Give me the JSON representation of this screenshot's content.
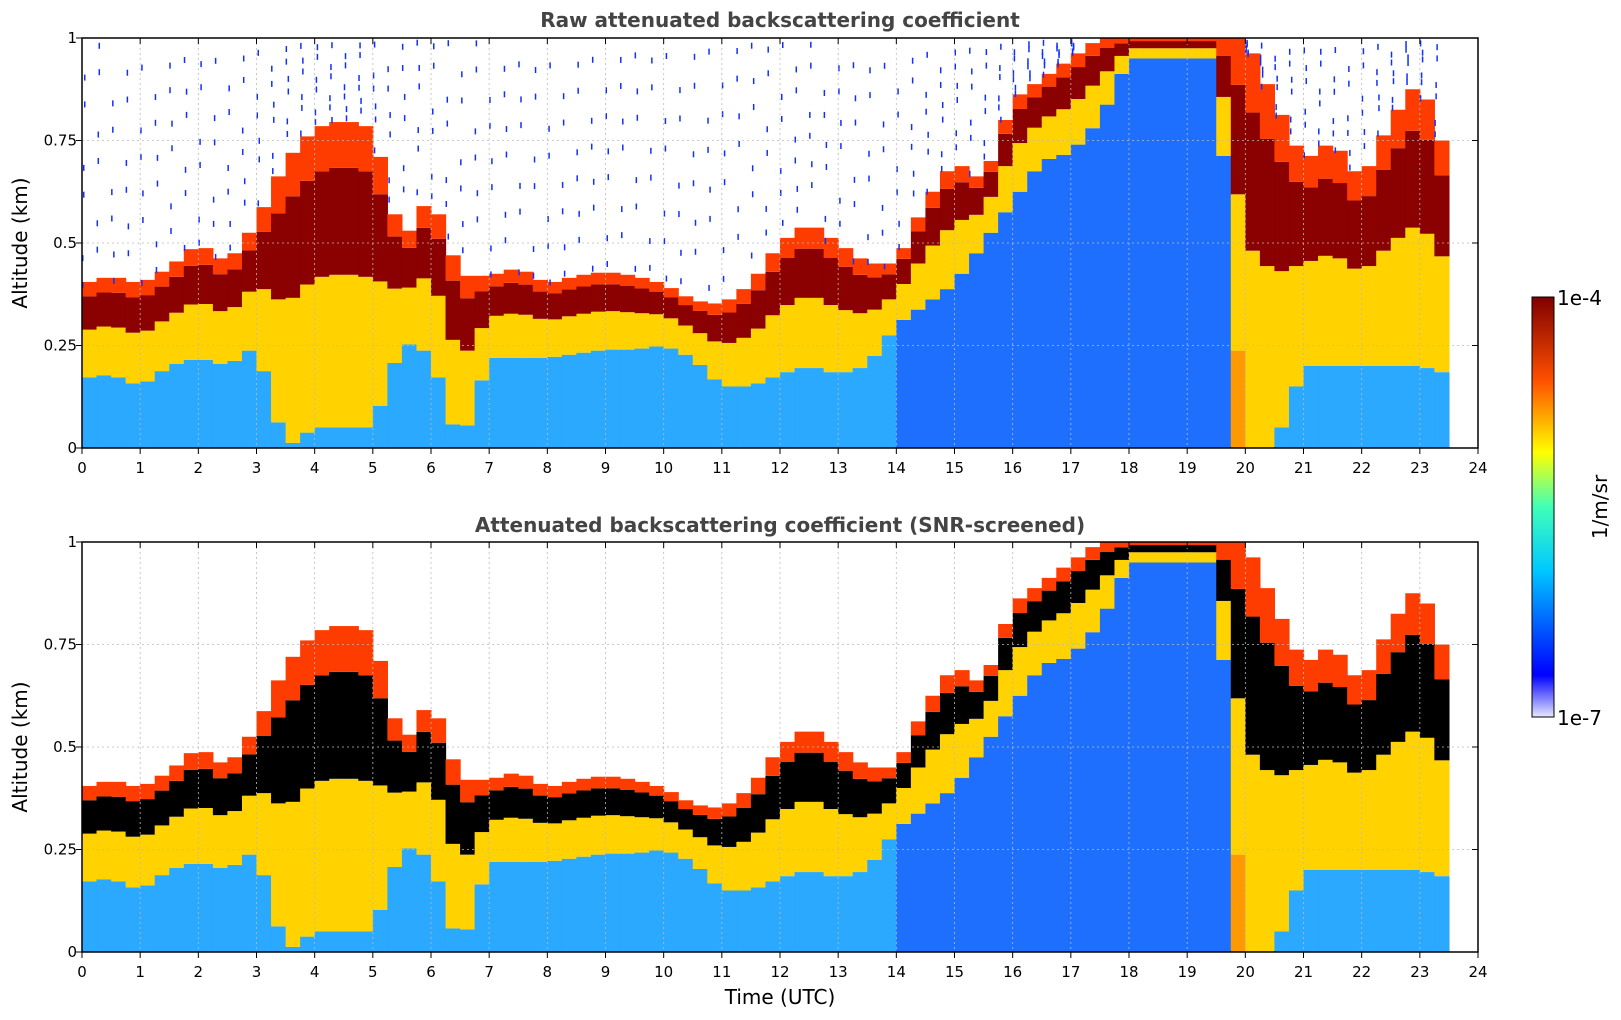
{
  "chart_data": [
    {
      "type": "heatmap",
      "title": "Raw attenuated backscattering coefficient",
      "xlabel": "",
      "ylabel": "Altitude (km)",
      "xlim": [
        0,
        24
      ],
      "ylim": [
        0,
        1
      ],
      "x_ticks": [
        "0",
        "1",
        "2",
        "3",
        "4",
        "5",
        "6",
        "7",
        "8",
        "9",
        "10",
        "11",
        "12",
        "13",
        "14",
        "15",
        "16",
        "17",
        "18",
        "19",
        "20",
        "21",
        "22",
        "23",
        "24"
      ],
      "y_ticks": [
        "0",
        "0.25",
        "0.5",
        "0.75",
        "1"
      ],
      "grid": true,
      "screened": false,
      "data_end_time": 23.5,
      "layer_profile": {
        "time": [
          0,
          0.5,
          1,
          1.5,
          2,
          2.5,
          3,
          3.5,
          4,
          4.5,
          5,
          5.5,
          6,
          6.5,
          7,
          7.5,
          8,
          8.5,
          9,
          9.5,
          10,
          10.5,
          11,
          11.5,
          12,
          12.5,
          13,
          13.5,
          14,
          14.5,
          15,
          15.5,
          16,
          16.5,
          17,
          17.5,
          18,
          18.5,
          19,
          19.5,
          20,
          20.5,
          21,
          21.5,
          22,
          22.5,
          23,
          23.5
        ],
        "top_km": [
          0.4,
          0.42,
          0.4,
          0.44,
          0.5,
          0.45,
          0.55,
          0.7,
          0.78,
          0.8,
          0.78,
          0.5,
          0.62,
          0.42,
          0.42,
          0.44,
          0.4,
          0.42,
          0.43,
          0.42,
          0.4,
          0.36,
          0.35,
          0.4,
          0.5,
          0.55,
          0.5,
          0.45,
          0.45,
          0.6,
          0.7,
          0.65,
          0.85,
          0.9,
          0.95,
          1.0,
          1.0,
          1.0,
          1.0,
          1.0,
          1.0,
          0.85,
          0.7,
          0.75,
          0.65,
          0.8,
          0.9,
          0.7
        ],
        "bottom_km": [
          0.17,
          0.18,
          0.15,
          0.2,
          0.22,
          0.2,
          0.25,
          0.0,
          0.05,
          0.05,
          0.05,
          0.26,
          0.23,
          0.0,
          0.22,
          0.22,
          0.22,
          0.23,
          0.24,
          0.24,
          0.25,
          0.22,
          0.15,
          0.15,
          0.18,
          0.2,
          0.18,
          0.2,
          0.3,
          0.35,
          0.4,
          0.5,
          0.6,
          0.7,
          0.72,
          0.8,
          0.95,
          0.95,
          0.95,
          0.95,
          0.0,
          0.0,
          0.2,
          0.2,
          0.2,
          0.2,
          0.2,
          0.18
        ]
      },
      "colorbar": {
        "label": "1/m/sr",
        "min_label": "1e-7",
        "max_label": "1e-4",
        "scale": "log",
        "colormap": "jet"
      }
    },
    {
      "type": "heatmap",
      "title": "Attenuated backscattering coefficient (SNR-screened)",
      "xlabel": "Time (UTC)",
      "ylabel": "Altitude (km)",
      "xlim": [
        0,
        24
      ],
      "ylim": [
        0,
        1
      ],
      "x_ticks": [
        "0",
        "1",
        "2",
        "3",
        "4",
        "5",
        "6",
        "7",
        "8",
        "9",
        "10",
        "11",
        "12",
        "13",
        "14",
        "15",
        "16",
        "17",
        "18",
        "19",
        "20",
        "21",
        "22",
        "23",
        "24"
      ],
      "y_ticks": [
        "0",
        "0.25",
        "0.5",
        "0.75",
        "1"
      ],
      "grid": true,
      "screened": true,
      "saturated_color": "#000000",
      "data_end_time": 23.5
    }
  ],
  "colors": {
    "title": "#444444",
    "background": "#ffffff",
    "grid": "#bbbbbb"
  }
}
